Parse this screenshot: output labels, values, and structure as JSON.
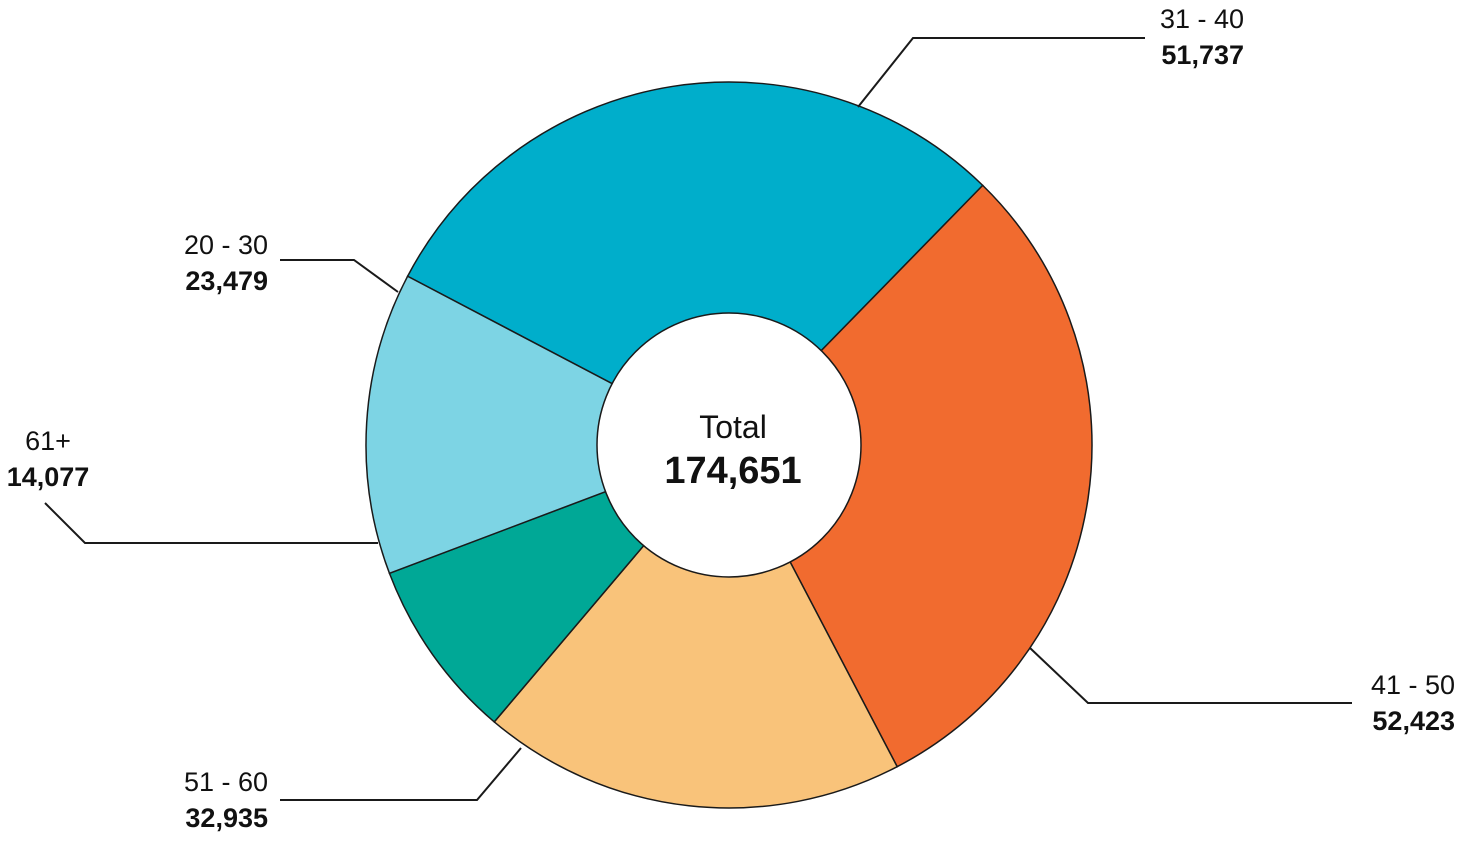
{
  "chart_data": {
    "type": "pie",
    "variant": "donut",
    "center": {
      "title": "Total",
      "value": "174,651"
    },
    "categories": [
      "31 - 40",
      "41 - 50",
      "51 - 60",
      "61+",
      "20 - 30"
    ],
    "values": [
      51737,
      52423,
      32935,
      14077,
      23479
    ],
    "value_labels": [
      "51,737",
      "52,423",
      "32,935",
      "14,077",
      "23,479"
    ],
    "colors": [
      "#00aecb",
      "#f16b2f",
      "#f9c37a",
      "#00a896",
      "#7dd4e4"
    ],
    "legend": "none (labels with leader lines)"
  }
}
